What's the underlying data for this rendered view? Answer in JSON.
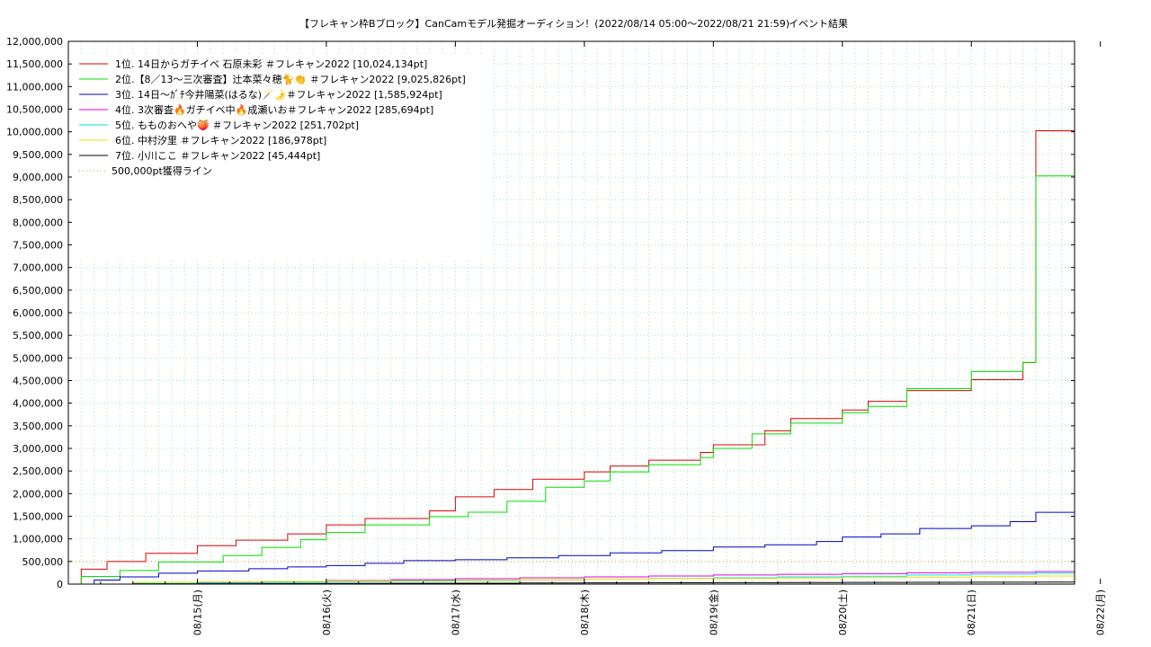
{
  "chart_data": {
    "type": "line",
    "title": "【フレキャン枠Bブロック】CanCamモデル発掘オーディション！(2022/08/14 05:00〜2022/08/21 21:59)",
    "subtitle": "イベント結果",
    "xlabel": "",
    "ylabel": "",
    "x_ticks": [
      "08/15(月)",
      "08/16(火)",
      "08/17(水)",
      "08/18(木)",
      "08/19(金)",
      "08/20(土)",
      "08/21(日)",
      "08/22(月)"
    ],
    "xlim": [
      0,
      7.8
    ],
    "ylim": [
      0,
      12000000
    ],
    "y_step": 500000,
    "grid": true,
    "legend_position": "top-left",
    "colors": {
      "s1": "#e00000",
      "s2": "#00e000",
      "s3": "#0000c8",
      "s4": "#e000e0",
      "s5": "#00e0e0",
      "s6": "#f0e000",
      "s7": "#000000",
      "threshold": "#c8a040"
    },
    "series": [
      {
        "name": "1位. 14日からガチイベ 石原未彩 ＃フレキャン2022 [10,024,134pt]",
        "color_key": "s1",
        "x": [
          0,
          0.05,
          0.1,
          0.3,
          0.6,
          1.0,
          1.3,
          1.7,
          2.0,
          2.3,
          2.8,
          3.0,
          3.3,
          3.6,
          4.0,
          4.2,
          4.5,
          4.9,
          5.0,
          5.4,
          5.6,
          6.0,
          6.2,
          6.5,
          7.0,
          7.4,
          7.5,
          7.6,
          7.7,
          7.75,
          7.8
        ],
        "y": [
          0,
          0,
          330000,
          500000,
          680000,
          850000,
          970000,
          1110000,
          1310000,
          1450000,
          1620000,
          1930000,
          2090000,
          2320000,
          2480000,
          2610000,
          2740000,
          2910000,
          3080000,
          3390000,
          3660000,
          3850000,
          4040000,
          4280000,
          4520000,
          4900000,
          10024134,
          10024134,
          10024134,
          10024134,
          10024134
        ]
      },
      {
        "name": "2位.【8／13〜三次審査】辻本菜々穂🐈👏 ＃フレキャン2022 [9,025,826pt]",
        "color_key": "s2",
        "x": [
          0,
          0.05,
          0.1,
          0.4,
          0.7,
          1.2,
          1.5,
          1.8,
          2.0,
          2.3,
          2.8,
          3.1,
          3.4,
          3.7,
          4.0,
          4.2,
          4.5,
          4.9,
          5.0,
          5.3,
          5.6,
          6.0,
          6.2,
          6.5,
          7.0,
          7.4,
          7.5,
          7.6,
          7.7,
          7.75,
          7.8
        ],
        "y": [
          0,
          0,
          170000,
          300000,
          490000,
          630000,
          810000,
          980000,
          1140000,
          1310000,
          1490000,
          1590000,
          1830000,
          2140000,
          2280000,
          2480000,
          2640000,
          2800000,
          3000000,
          3320000,
          3560000,
          3790000,
          3930000,
          4320000,
          4700000,
          4900000,
          9025826,
          9025826,
          9025826,
          9025826,
          9025826
        ]
      },
      {
        "name": "3位. 14日〜ｶﾞﾁ今井陽菜(はるな)🪄🌛＃フレキャン2022 [1,585,924pt]",
        "color_key": "s3",
        "x": [
          0,
          0.2,
          0.4,
          0.7,
          1.0,
          1.4,
          1.7,
          2.0,
          2.3,
          2.6,
          3.0,
          3.4,
          3.8,
          4.2,
          4.6,
          5.0,
          5.4,
          5.8,
          6.0,
          6.3,
          6.6,
          7.0,
          7.3,
          7.5,
          7.8
        ],
        "y": [
          0,
          90000,
          160000,
          240000,
          290000,
          340000,
          380000,
          410000,
          460000,
          520000,
          540000,
          580000,
          630000,
          690000,
          740000,
          820000,
          870000,
          940000,
          1040000,
          1110000,
          1230000,
          1290000,
          1380000,
          1585924,
          1585924
        ]
      },
      {
        "name": "4位. 3次審査🔥ガチイベ中🔥成瀬いお＃フレキャン2022 [285,694pt]",
        "color_key": "s4",
        "x": [
          0,
          0.5,
          1.0,
          1.5,
          2.0,
          2.5,
          3.0,
          3.5,
          4.0,
          4.5,
          5.0,
          5.5,
          6.0,
          6.5,
          7.0,
          7.5,
          7.8
        ],
        "y": [
          0,
          10000,
          30000,
          50000,
          80000,
          100000,
          120000,
          140000,
          160000,
          180000,
          200000,
          215000,
          230000,
          250000,
          260000,
          275000,
          285694
        ]
      },
      {
        "name": "5位. もものおへや🍑 ＃フレキャン2022 [251,702pt]",
        "color_key": "s5",
        "x": [
          0,
          0.5,
          1.0,
          1.5,
          2.0,
          2.5,
          3.0,
          3.5,
          4.0,
          4.5,
          5.0,
          5.5,
          6.0,
          6.5,
          7.0,
          7.5,
          7.8
        ],
        "y": [
          0,
          15000,
          25000,
          40000,
          55000,
          65000,
          80000,
          95000,
          110000,
          125000,
          140000,
          160000,
          175000,
          200000,
          220000,
          240000,
          251702
        ]
      },
      {
        "name": "6位. 中村汐里 ＃フレキャン2022 [186,978pt]",
        "color_key": "s6",
        "x": [
          0,
          0.5,
          1.0,
          1.5,
          2.0,
          2.5,
          3.0,
          3.5,
          4.0,
          4.5,
          5.0,
          5.5,
          6.0,
          6.5,
          7.0,
          7.5,
          7.8
        ],
        "y": [
          0,
          40000,
          50000,
          60000,
          70000,
          80000,
          90000,
          100000,
          110000,
          120000,
          125000,
          135000,
          145000,
          155000,
          165000,
          180000,
          186978
        ]
      },
      {
        "name": "7位. 小川ここ ＃フレキャン2022 [45,444pt]",
        "color_key": "s7",
        "x": [
          0,
          0.5,
          1.0,
          1.5,
          2.0,
          2.5,
          3.0,
          3.5,
          4.0,
          4.5,
          5.0,
          5.5,
          6.0,
          6.5,
          7.0,
          7.5,
          7.8
        ],
        "y": [
          0,
          5000,
          8000,
          12000,
          15000,
          18000,
          21000,
          24000,
          27000,
          30000,
          33000,
          36000,
          38000,
          40000,
          42000,
          44000,
          45444
        ]
      }
    ],
    "threshold": {
      "name": "500,000pt獲得ライン",
      "value": 500000
    }
  }
}
